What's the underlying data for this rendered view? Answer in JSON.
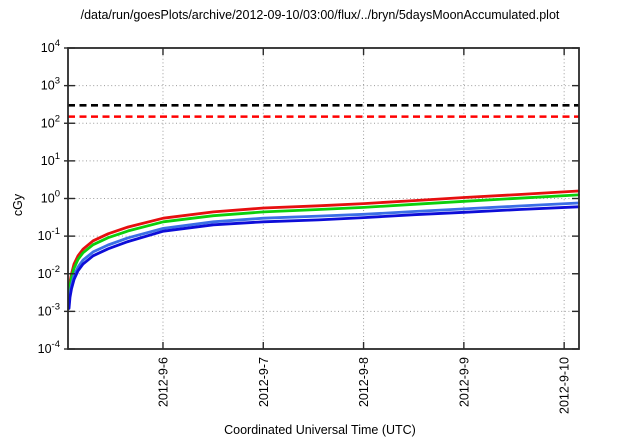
{
  "chart": {
    "title": "/data/run/goesPlots/archive/2012-09-10/03:00/flux/../bryn/5daysMoonAccumulated.plot",
    "xlabel": "Coordinated Universal Time (UTC)",
    "ylabel": "cGy"
  },
  "chart_data": {
    "type": "line",
    "title": "/data/run/goesPlots/archive/2012-09-10/03:00/flux/../bryn/5daysMoonAccumulated.plot",
    "xlabel": "Coordinated Universal Time (UTC)",
    "ylabel": "cGy",
    "y_scale": "log10",
    "ylim_exponents": [
      -4,
      4
    ],
    "y_tick_exponents": [
      4,
      3,
      2,
      1,
      0,
      -1,
      -2,
      -3,
      -4
    ],
    "x_tick_labels": [
      "2012-9-6",
      "2012-9-7",
      "2012-9-8",
      "2012-9-9",
      "2012-9-10"
    ],
    "x_tick_days": [
      0.947,
      1.947,
      2.947,
      3.947,
      4.947
    ],
    "x_range_days": [
      0,
      5.095
    ],
    "grid": "dotted",
    "legend": "none",
    "thresholds": [
      {
        "name": "upper-limit-line",
        "value_cGy": 300,
        "color": "#000000",
        "style": "dashed"
      },
      {
        "name": "lower-limit-line",
        "value_cGy": 150,
        "color": "#ff0000",
        "style": "dashed"
      }
    ],
    "samples_days": [
      0.01,
      0.02,
      0.035,
      0.06,
      0.1,
      0.15,
      0.25,
      0.4,
      0.6,
      0.95,
      1.45,
      1.95,
      2.5,
      2.95,
      3.45,
      3.95,
      4.5,
      5.09
    ],
    "series": [
      {
        "name": "red",
        "color": "#e60f0f",
        "width": 2.8,
        "values_cGy": [
          0.003,
          0.006,
          0.01,
          0.018,
          0.03,
          0.045,
          0.075,
          0.115,
          0.175,
          0.3,
          0.44,
          0.56,
          0.64,
          0.73,
          0.88,
          1.06,
          1.28,
          1.58
        ]
      },
      {
        "name": "green",
        "color": "#0ccf0c",
        "width": 2.8,
        "values_cGy": [
          0.0024,
          0.0048,
          0.008,
          0.014,
          0.024,
          0.036,
          0.059,
          0.091,
          0.138,
          0.24,
          0.35,
          0.44,
          0.51,
          0.58,
          0.7,
          0.84,
          1.02,
          1.25
        ]
      },
      {
        "name": "light-blue",
        "color": "#3b6ee6",
        "width": 2.8,
        "values_cGy": [
          0.0015,
          0.003,
          0.005,
          0.009,
          0.015,
          0.023,
          0.038,
          0.058,
          0.09,
          0.16,
          0.24,
          0.3,
          0.34,
          0.38,
          0.45,
          0.53,
          0.63,
          0.76
        ]
      },
      {
        "name": "blue",
        "color": "#0d0dd8",
        "width": 2.8,
        "values_cGy": [
          0.0012,
          0.0024,
          0.004,
          0.007,
          0.012,
          0.018,
          0.03,
          0.046,
          0.072,
          0.135,
          0.2,
          0.24,
          0.27,
          0.31,
          0.37,
          0.43,
          0.51,
          0.6
        ]
      }
    ]
  }
}
